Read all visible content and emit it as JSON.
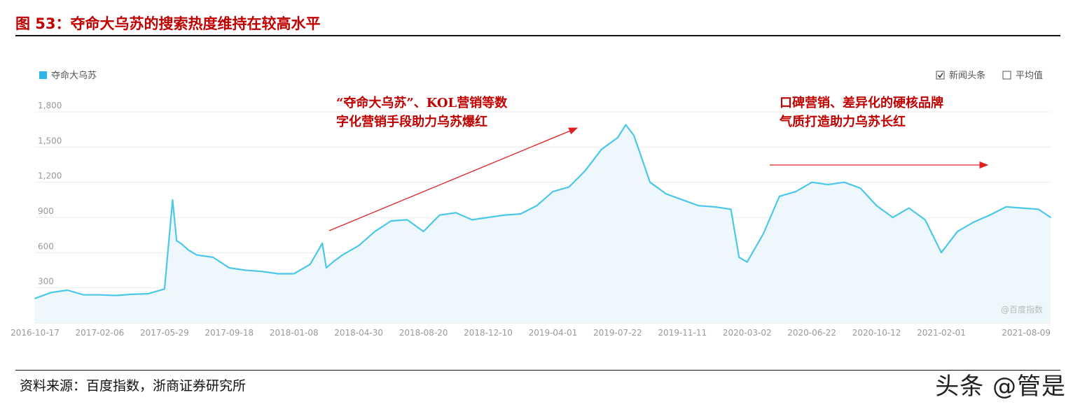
{
  "figure": {
    "title": "图 53：夺命大乌苏的搜索热度维持在较高水平",
    "source": "资料来源：百度指数，浙商证券研究所",
    "watermark": "头条 @管是"
  },
  "chart_data": {
    "type": "area",
    "series": [
      {
        "name": "夺命大乌苏",
        "color": "#4cc7e8",
        "x": [
          "2016-10-17",
          "2016-11-14",
          "2016-12-12",
          "2017-01-09",
          "2017-02-06",
          "2017-03-06",
          "2017-04-03",
          "2017-05-01",
          "2017-05-29",
          "2017-06-12",
          "2017-06-19",
          "2017-06-26",
          "2017-07-10",
          "2017-07-24",
          "2017-08-21",
          "2017-09-18",
          "2017-10-16",
          "2017-11-13",
          "2017-12-11",
          "2018-01-08",
          "2018-02-05",
          "2018-02-26",
          "2018-03-05",
          "2018-03-19",
          "2018-04-02",
          "2018-04-30",
          "2018-05-28",
          "2018-06-25",
          "2018-07-23",
          "2018-08-20",
          "2018-09-17",
          "2018-10-15",
          "2018-11-12",
          "2018-12-10",
          "2019-01-07",
          "2019-02-04",
          "2019-03-04",
          "2019-04-01",
          "2019-04-29",
          "2019-05-27",
          "2019-06-24",
          "2019-07-22",
          "2019-08-05",
          "2019-08-19",
          "2019-09-16",
          "2019-10-14",
          "2019-11-11",
          "2019-12-09",
          "2020-01-06",
          "2020-02-03",
          "2020-02-17",
          "2020-03-02",
          "2020-03-30",
          "2020-04-27",
          "2020-05-25",
          "2020-06-22",
          "2020-07-20",
          "2020-08-17",
          "2020-09-14",
          "2020-10-12",
          "2020-11-09",
          "2020-12-07",
          "2021-01-04",
          "2021-02-01",
          "2021-03-01",
          "2021-03-29",
          "2021-04-26",
          "2021-05-24",
          "2021-06-21",
          "2021-07-19",
          "2021-08-09"
        ],
        "values": [
          210,
          260,
          280,
          240,
          240,
          235,
          245,
          250,
          290,
          1050,
          700,
          680,
          620,
          580,
          560,
          470,
          450,
          440,
          420,
          420,
          500,
          680,
          470,
          530,
          580,
          660,
          780,
          870,
          880,
          780,
          920,
          940,
          880,
          900,
          920,
          930,
          1000,
          1120,
          1160,
          1300,
          1480,
          1580,
          1690,
          1600,
          1200,
          1100,
          1050,
          1000,
          990,
          970,
          560,
          520,
          760,
          1080,
          1120,
          1200,
          1180,
          1200,
          1150,
          1000,
          900,
          980,
          880,
          600,
          780,
          860,
          920,
          990,
          980,
          970,
          900
        ]
      }
    ],
    "ylim": [
      0,
      1800
    ],
    "yticks": [
      "300",
      "600",
      "900",
      "1,200",
      "1,500",
      "1,800"
    ],
    "ytick_values": [
      300,
      600,
      900,
      1200,
      1500,
      1800
    ],
    "xtick_labels": [
      "2016-10-17",
      "2017-02-06",
      "2017-05-29",
      "2017-09-18",
      "2018-01-08",
      "2018-04-30",
      "2018-08-20",
      "2018-12-10",
      "2019-04-01",
      "2019-07-22",
      "2019-11-11",
      "2020-03-02",
      "2020-06-22",
      "2020-10-12",
      "2021-02-01",
      "2021-08-09"
    ],
    "grid": true,
    "legend": {
      "position": "top-left",
      "label": "夺命大乌苏"
    },
    "toggles": [
      {
        "label": "新闻头条",
        "checked": true
      },
      {
        "label": "平均值",
        "checked": false
      }
    ],
    "annotations": [
      {
        "lines": [
          "“夺命大乌苏”、KOL营销等数",
          "字化营销手段助力乌苏爆红"
        ],
        "color": "#c00000"
      },
      {
        "lines": [
          "口碑营销、差异化的硬核品牌",
          "气质打造助力乌苏长红"
        ],
        "color": "#c00000"
      }
    ],
    "credit": "@百度指数"
  }
}
